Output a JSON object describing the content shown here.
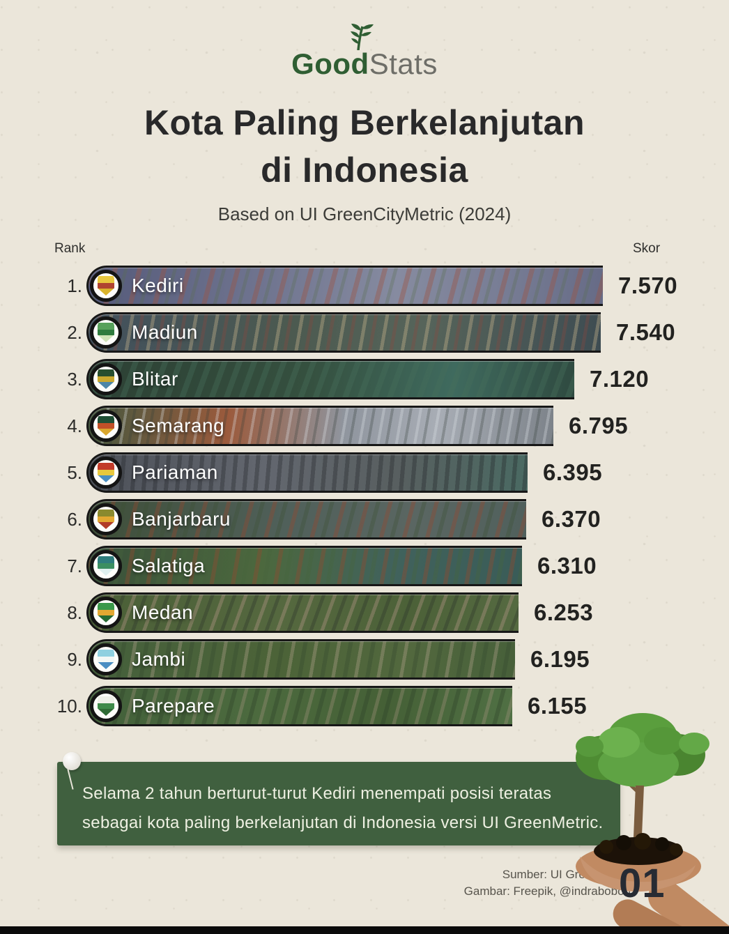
{
  "logo": {
    "part1": "Good",
    "part2": "Stats",
    "icon": "leaf-sprig-icon"
  },
  "title": {
    "line1": "Kota Paling Berkelanjutan",
    "line2": "di Indonesia"
  },
  "subtitle": "Based on UI GreenCityMetric (2024)",
  "labels": {
    "rank": "Rank",
    "score": "Skor"
  },
  "chart_data": {
    "type": "bar",
    "orientation": "horizontal",
    "title": "Kota Paling Berkelanjutan di Indonesia",
    "subtitle": "Based on UI GreenCityMetric (2024)",
    "rank_axis_label": "Rank",
    "value_axis_label": "Skor",
    "categories": [
      "Kediri",
      "Madiun",
      "Blitar",
      "Semarang",
      "Pariaman",
      "Banjarbaru",
      "Salatiga",
      "Medan",
      "Jambi",
      "Parepare"
    ],
    "values": [
      7570,
      7540,
      7120,
      6795,
      6395,
      6370,
      6310,
      6253,
      6195,
      6155
    ],
    "value_labels": [
      "7.570",
      "7.540",
      "7.120",
      "6.795",
      "6.395",
      "6.370",
      "6.310",
      "6.253",
      "6.195",
      "6.155"
    ],
    "value_range_implied": [
      6155,
      7570
    ],
    "grid": false,
    "legend": false,
    "bar_fill": "aerial city photo strips with city emblem badge at left"
  },
  "cities": [
    {
      "rank": "1.",
      "name": "Kediri",
      "score": "7.570",
      "value": 7570,
      "emblem": "kediri-city-emblem",
      "emblem_colors": [
        "#e9c83f",
        "#b04430",
        "#d9b32c"
      ]
    },
    {
      "rank": "2.",
      "name": "Madiun",
      "score": "7.540",
      "value": 7540,
      "emblem": "madiun-city-emblem",
      "emblem_colors": [
        "#57a15b",
        "#2f7b3e",
        "#cfe3b8"
      ]
    },
    {
      "rank": "3.",
      "name": "Blitar",
      "score": "7.120",
      "value": 7120,
      "emblem": "blitar-city-emblem",
      "emblem_colors": [
        "#274e2f",
        "#c9a82f",
        "#4d86a8"
      ]
    },
    {
      "rank": "4.",
      "name": "Semarang",
      "score": "6.795",
      "value": 6795,
      "emblem": "semarang-city-emblem",
      "emblem_colors": [
        "#1f4f35",
        "#c05028",
        "#d9a62e"
      ]
    },
    {
      "rank": "5.",
      "name": "Pariaman",
      "score": "6.395",
      "value": 6395,
      "emblem": "pariaman-city-emblem",
      "emblem_colors": [
        "#c23b2a",
        "#e8c83e",
        "#4a8ec2"
      ]
    },
    {
      "rank": "6.",
      "name": "Banjarbaru",
      "score": "6.370",
      "value": 6370,
      "emblem": "banjarbaru-city-emblem",
      "emblem_colors": [
        "#8a8a2e",
        "#e2a832",
        "#b23c28"
      ]
    },
    {
      "rank": "7.",
      "name": "Salatiga",
      "score": "6.310",
      "value": 6310,
      "emblem": "salatiga-city-emblem",
      "emblem_colors": [
        "#2e7d7d",
        "#3b8f61",
        "#dff0ef"
      ]
    },
    {
      "rank": "8.",
      "name": "Medan",
      "score": "6.253",
      "value": 6253,
      "emblem": "medan-city-emblem",
      "emblem_colors": [
        "#39984a",
        "#e2a832",
        "#276b33"
      ]
    },
    {
      "rank": "9.",
      "name": "Jambi",
      "score": "6.195",
      "value": 6195,
      "emblem": "jambi-city-emblem",
      "emblem_colors": [
        "#8fd0e0",
        "#f2f7f5",
        "#4a8ec2"
      ]
    },
    {
      "rank": "10.",
      "name": "Parepare",
      "score": "6.155",
      "value": 6155,
      "emblem": "parepare-city-emblem",
      "emblem_colors": [
        "#eef0e8",
        "#3f8a4a",
        "#2f6b35"
      ]
    }
  ],
  "callout": {
    "line1": "Selama 2 tahun berturut-turut Kediri menempati posisi teratas",
    "line2": "sebagai kota paling berkelanjutan di Indonesia versi UI GreenMetric."
  },
  "footer": {
    "source_line1": "Sumber: UI GreenMetric",
    "source_line2": "Gambar: Freepik, @indrabobon",
    "page_number": "01"
  },
  "colors": {
    "paper": "#ebe6da",
    "logo_green": "#2f5e33",
    "callout_green": "#40603f",
    "text_dark": "#29292a"
  }
}
